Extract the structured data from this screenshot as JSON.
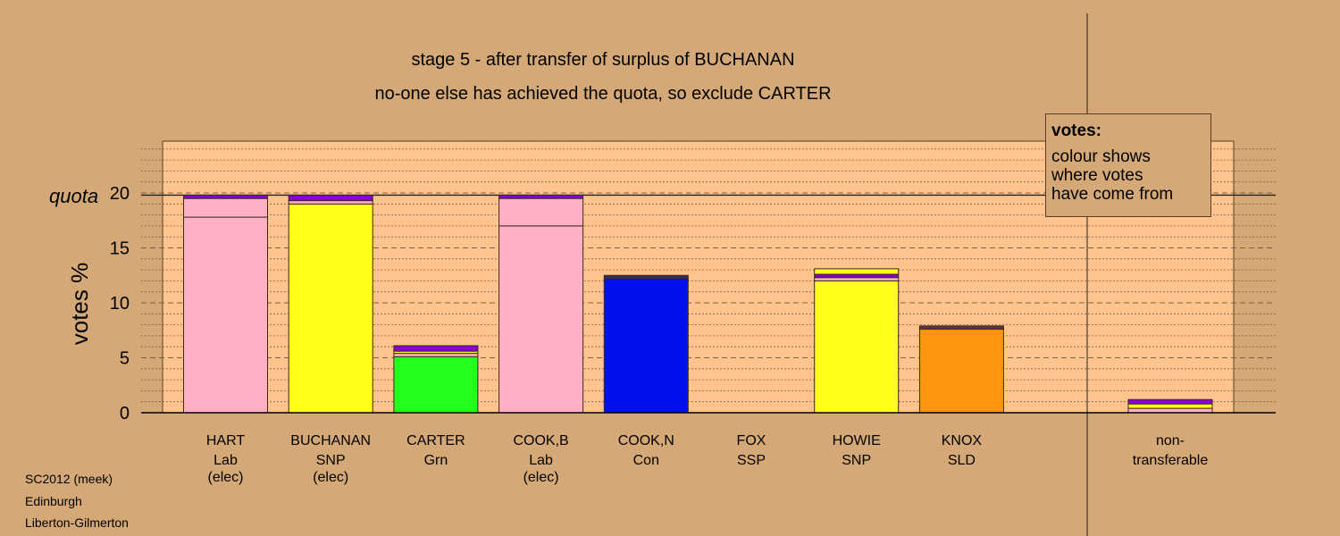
{
  "chart_data": {
    "type": "bar",
    "stacked": true,
    "title": "stage 5 - after transfer of surplus of BUCHANAN",
    "subtitle": "no-one else has achieved the quota, so exclude CARTER",
    "ylabel": "votes %",
    "ylim": [
      0,
      24
    ],
    "yticks": [
      "0",
      "5",
      "10",
      "15",
      "20"
    ],
    "quota_label": "quota",
    "quota": 19.8,
    "grid": true,
    "candidates": [
      {
        "name": "HART",
        "party": "Lab",
        "status": "(elec)",
        "segments": [
          {
            "value": 17.8,
            "color": "#ffb0c4"
          },
          {
            "value": 1.7,
            "color": "#ffb0c4"
          },
          {
            "value": 0.3,
            "color": "#8800dd"
          }
        ]
      },
      {
        "name": "BUCHANAN",
        "party": "SNP",
        "status": "(elec)",
        "segments": [
          {
            "value": 19.0,
            "color": "#ffff1a"
          },
          {
            "value": 0.3,
            "color": "#ffb0c4"
          },
          {
            "value": 0.5,
            "color": "#8800dd"
          }
        ]
      },
      {
        "name": "CARTER",
        "party": "Grn",
        "status": "",
        "segments": [
          {
            "value": 5.1,
            "color": "#22ff1a"
          },
          {
            "value": 0.3,
            "color": "#ffb0c4"
          },
          {
            "value": 0.2,
            "color": "#ffff1a"
          },
          {
            "value": 0.5,
            "color": "#8800dd"
          }
        ]
      },
      {
        "name": "COOK,B",
        "party": "Lab",
        "status": "(elec)",
        "segments": [
          {
            "value": 17.0,
            "color": "#ffb0c4"
          },
          {
            "value": 2.5,
            "color": "#ffb0c4"
          },
          {
            "value": 0.3,
            "color": "#8800dd"
          }
        ]
      },
      {
        "name": "COOK,N",
        "party": "Con",
        "status": "",
        "segments": [
          {
            "value": 12.2,
            "color": "#0011ee"
          },
          {
            "value": 0.3,
            "color": "#3a2a55"
          }
        ]
      },
      {
        "name": "FOX",
        "party": "SSP",
        "status": "",
        "segments": []
      },
      {
        "name": "HOWIE",
        "party": "SNP",
        "status": "",
        "segments": [
          {
            "value": 12.0,
            "color": "#ffff1a"
          },
          {
            "value": 0.3,
            "color": "#ffb0c4"
          },
          {
            "value": 0.3,
            "color": "#8800dd"
          },
          {
            "value": 0.5,
            "color": "#ffff1a"
          }
        ]
      },
      {
        "name": "KNOX",
        "party": "SLD",
        "status": "",
        "segments": [
          {
            "value": 7.6,
            "color": "#ff9410"
          },
          {
            "value": 0.3,
            "color": "#5a3040"
          }
        ]
      }
    ],
    "nontransferable": {
      "label1": "non-",
      "label2": "transferable",
      "segments": [
        {
          "value": 0.4,
          "color": "#ffb0c4"
        },
        {
          "value": 0.4,
          "color": "#ffff1a"
        },
        {
          "value": 0.4,
          "color": "#8800dd"
        }
      ]
    }
  },
  "legend": {
    "title": "votes:",
    "lines": [
      "colour shows",
      "where votes",
      "have come from"
    ]
  },
  "footer": {
    "line1": "SC2012 (meek)",
    "line2": "Edinburgh",
    "line3": "Liberton-Gilmerton"
  },
  "colors": {
    "background": "#d4a977",
    "plot_area": "#ffc48e",
    "grid": "#7a6048",
    "axis": "#000000"
  }
}
